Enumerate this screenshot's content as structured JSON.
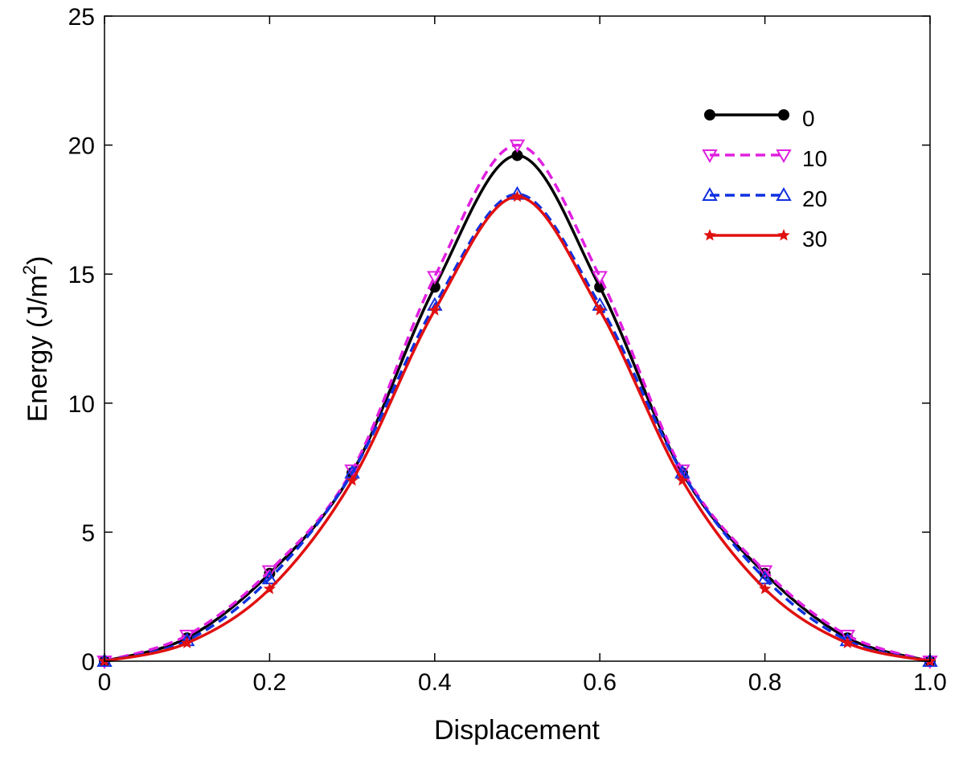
{
  "chart_data": {
    "type": "line",
    "title": "",
    "xlabel": "Displacement",
    "ylabel_main": "Energy (J/m",
    "ylabel_sup": "2",
    "ylabel_close": ")",
    "xlim": [
      0,
      1.0
    ],
    "ylim": [
      0,
      25
    ],
    "xticks": [
      0,
      0.2,
      0.4,
      0.6,
      0.8,
      1.0
    ],
    "xtick_labels": [
      "0",
      "0.2",
      "0.4",
      "0.6",
      "0.8",
      "1.0"
    ],
    "yticks": [
      0,
      5,
      10,
      15,
      20,
      25
    ],
    "ytick_labels": [
      "0",
      "5",
      "10",
      "15",
      "20",
      "25"
    ],
    "grid": false,
    "legend_position": "top-right",
    "x": [
      0,
      0.1,
      0.2,
      0.3,
      0.4,
      0.5,
      0.6,
      0.7,
      0.8,
      0.9,
      1.0
    ],
    "series": [
      {
        "name": "0",
        "color": "#000000",
        "dash": "solid",
        "marker": "circle",
        "values": [
          0,
          0.9,
          3.4,
          7.3,
          14.5,
          19.6,
          14.5,
          7.3,
          3.4,
          0.9,
          0
        ]
      },
      {
        "name": "10",
        "color": "#e020e0",
        "dash": "dashed",
        "marker": "triangle-down",
        "values": [
          0,
          1.0,
          3.5,
          7.4,
          14.9,
          20.0,
          14.9,
          7.4,
          3.5,
          1.0,
          0
        ]
      },
      {
        "name": "20",
        "color": "#1030e0",
        "dash": "dashed",
        "marker": "triangle-up",
        "values": [
          0,
          0.8,
          3.2,
          7.3,
          13.8,
          18.1,
          13.8,
          7.3,
          3.2,
          0.8,
          0
        ]
      },
      {
        "name": "30",
        "color": "#e01010",
        "dash": "solid",
        "marker": "star",
        "values": [
          0,
          0.7,
          2.8,
          7.0,
          13.6,
          18.0,
          13.6,
          7.0,
          2.8,
          0.7,
          0
        ]
      }
    ]
  }
}
